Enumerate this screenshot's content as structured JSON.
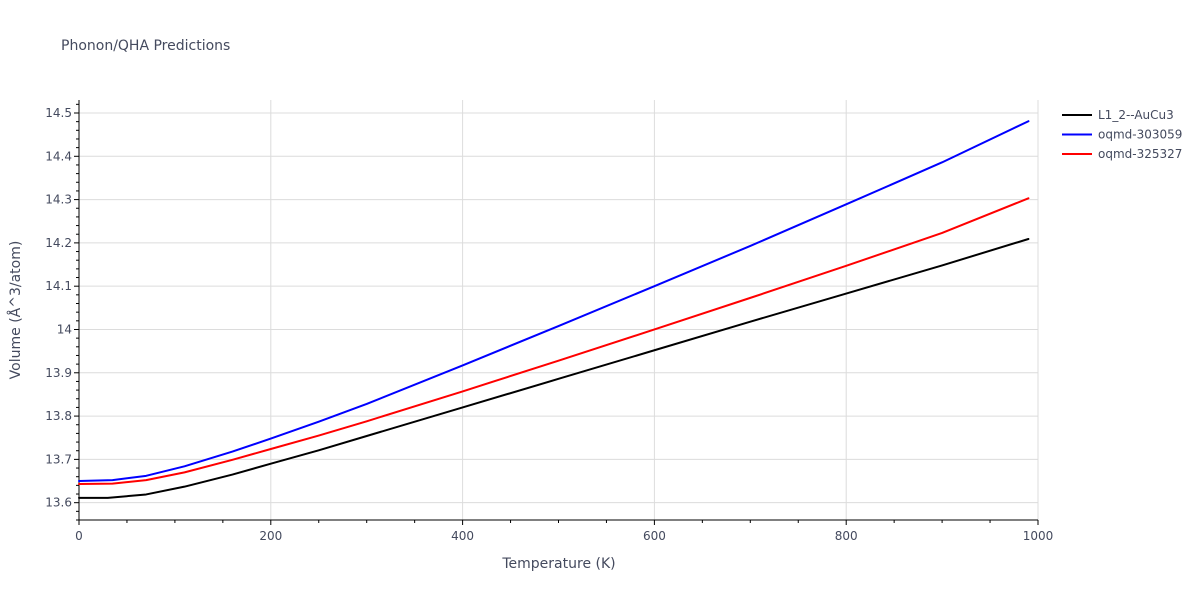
{
  "chart_data": {
    "type": "line",
    "title": "Phonon/QHA Predictions",
    "xlabel": "Temperature (K)",
    "ylabel": "Volume (Å^3/atom)",
    "xlim": [
      0,
      1000
    ],
    "ylim": [
      13.56,
      14.53
    ],
    "xticks": [
      0,
      200,
      400,
      600,
      800,
      1000
    ],
    "xtick_labels": [
      "0",
      "200",
      "400",
      "600",
      "800",
      "1000"
    ],
    "yticks": [
      13.6,
      13.7,
      13.8,
      13.9,
      14.0,
      14.1,
      14.2,
      14.3,
      14.4,
      14.5
    ],
    "ytick_labels": [
      "13.6",
      "13.7",
      "13.8",
      "13.9",
      "14",
      "14.1",
      "14.2",
      "14.3",
      "14.4",
      "14.5"
    ],
    "grid": true,
    "legend_position": "top-right",
    "series": [
      {
        "name": "L1_2--AuCu3",
        "color": "#000000",
        "x": [
          0,
          30,
          70,
          110,
          160,
          200,
          250,
          300,
          400,
          500,
          600,
          700,
          800,
          900,
          990
        ],
        "y": [
          13.611,
          13.611,
          13.619,
          13.637,
          13.665,
          13.69,
          13.721,
          13.754,
          13.82,
          13.886,
          13.952,
          14.018,
          14.083,
          14.148,
          14.209
        ]
      },
      {
        "name": "oqmd-303059",
        "color": "#0000ff",
        "x": [
          0,
          35,
          70,
          110,
          160,
          200,
          250,
          300,
          400,
          500,
          600,
          700,
          800,
          900,
          990
        ],
        "y": [
          13.65,
          13.652,
          13.662,
          13.684,
          13.718,
          13.748,
          13.787,
          13.828,
          13.917,
          14.008,
          14.1,
          14.193,
          14.289,
          14.386,
          14.481
        ]
      },
      {
        "name": "oqmd-325327",
        "color": "#ff0000",
        "x": [
          0,
          35,
          70,
          110,
          160,
          200,
          250,
          300,
          400,
          500,
          600,
          700,
          800,
          900,
          990
        ],
        "y": [
          13.643,
          13.644,
          13.652,
          13.67,
          13.699,
          13.724,
          13.755,
          13.788,
          13.857,
          13.928,
          14.0,
          14.073,
          14.147,
          14.223,
          14.303
        ]
      }
    ]
  }
}
